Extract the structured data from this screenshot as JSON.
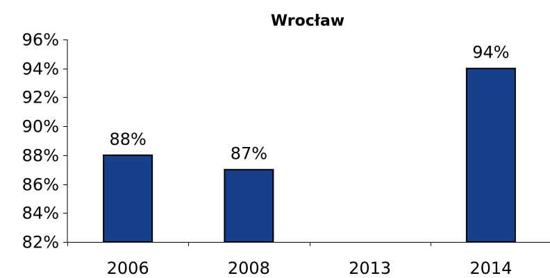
{
  "chart_data": {
    "type": "bar",
    "title": "Wrocław",
    "xlabel": "",
    "ylabel": "",
    "categories": [
      "2006",
      "2008",
      "2013",
      "2014"
    ],
    "values": [
      88,
      87,
      null,
      94
    ],
    "data_labels": [
      "88%",
      "87%",
      "",
      "94%"
    ],
    "ylim": [
      82,
      96
    ],
    "yticks": [
      82,
      84,
      86,
      88,
      90,
      92,
      94,
      96
    ],
    "ytick_labels": [
      "82%",
      "84%",
      "86%",
      "88%",
      "90%",
      "92%",
      "94%",
      "96%"
    ],
    "grid": false,
    "legend": "none",
    "bar_color": "#17408b",
    "bar_edge_color": "#000000"
  }
}
